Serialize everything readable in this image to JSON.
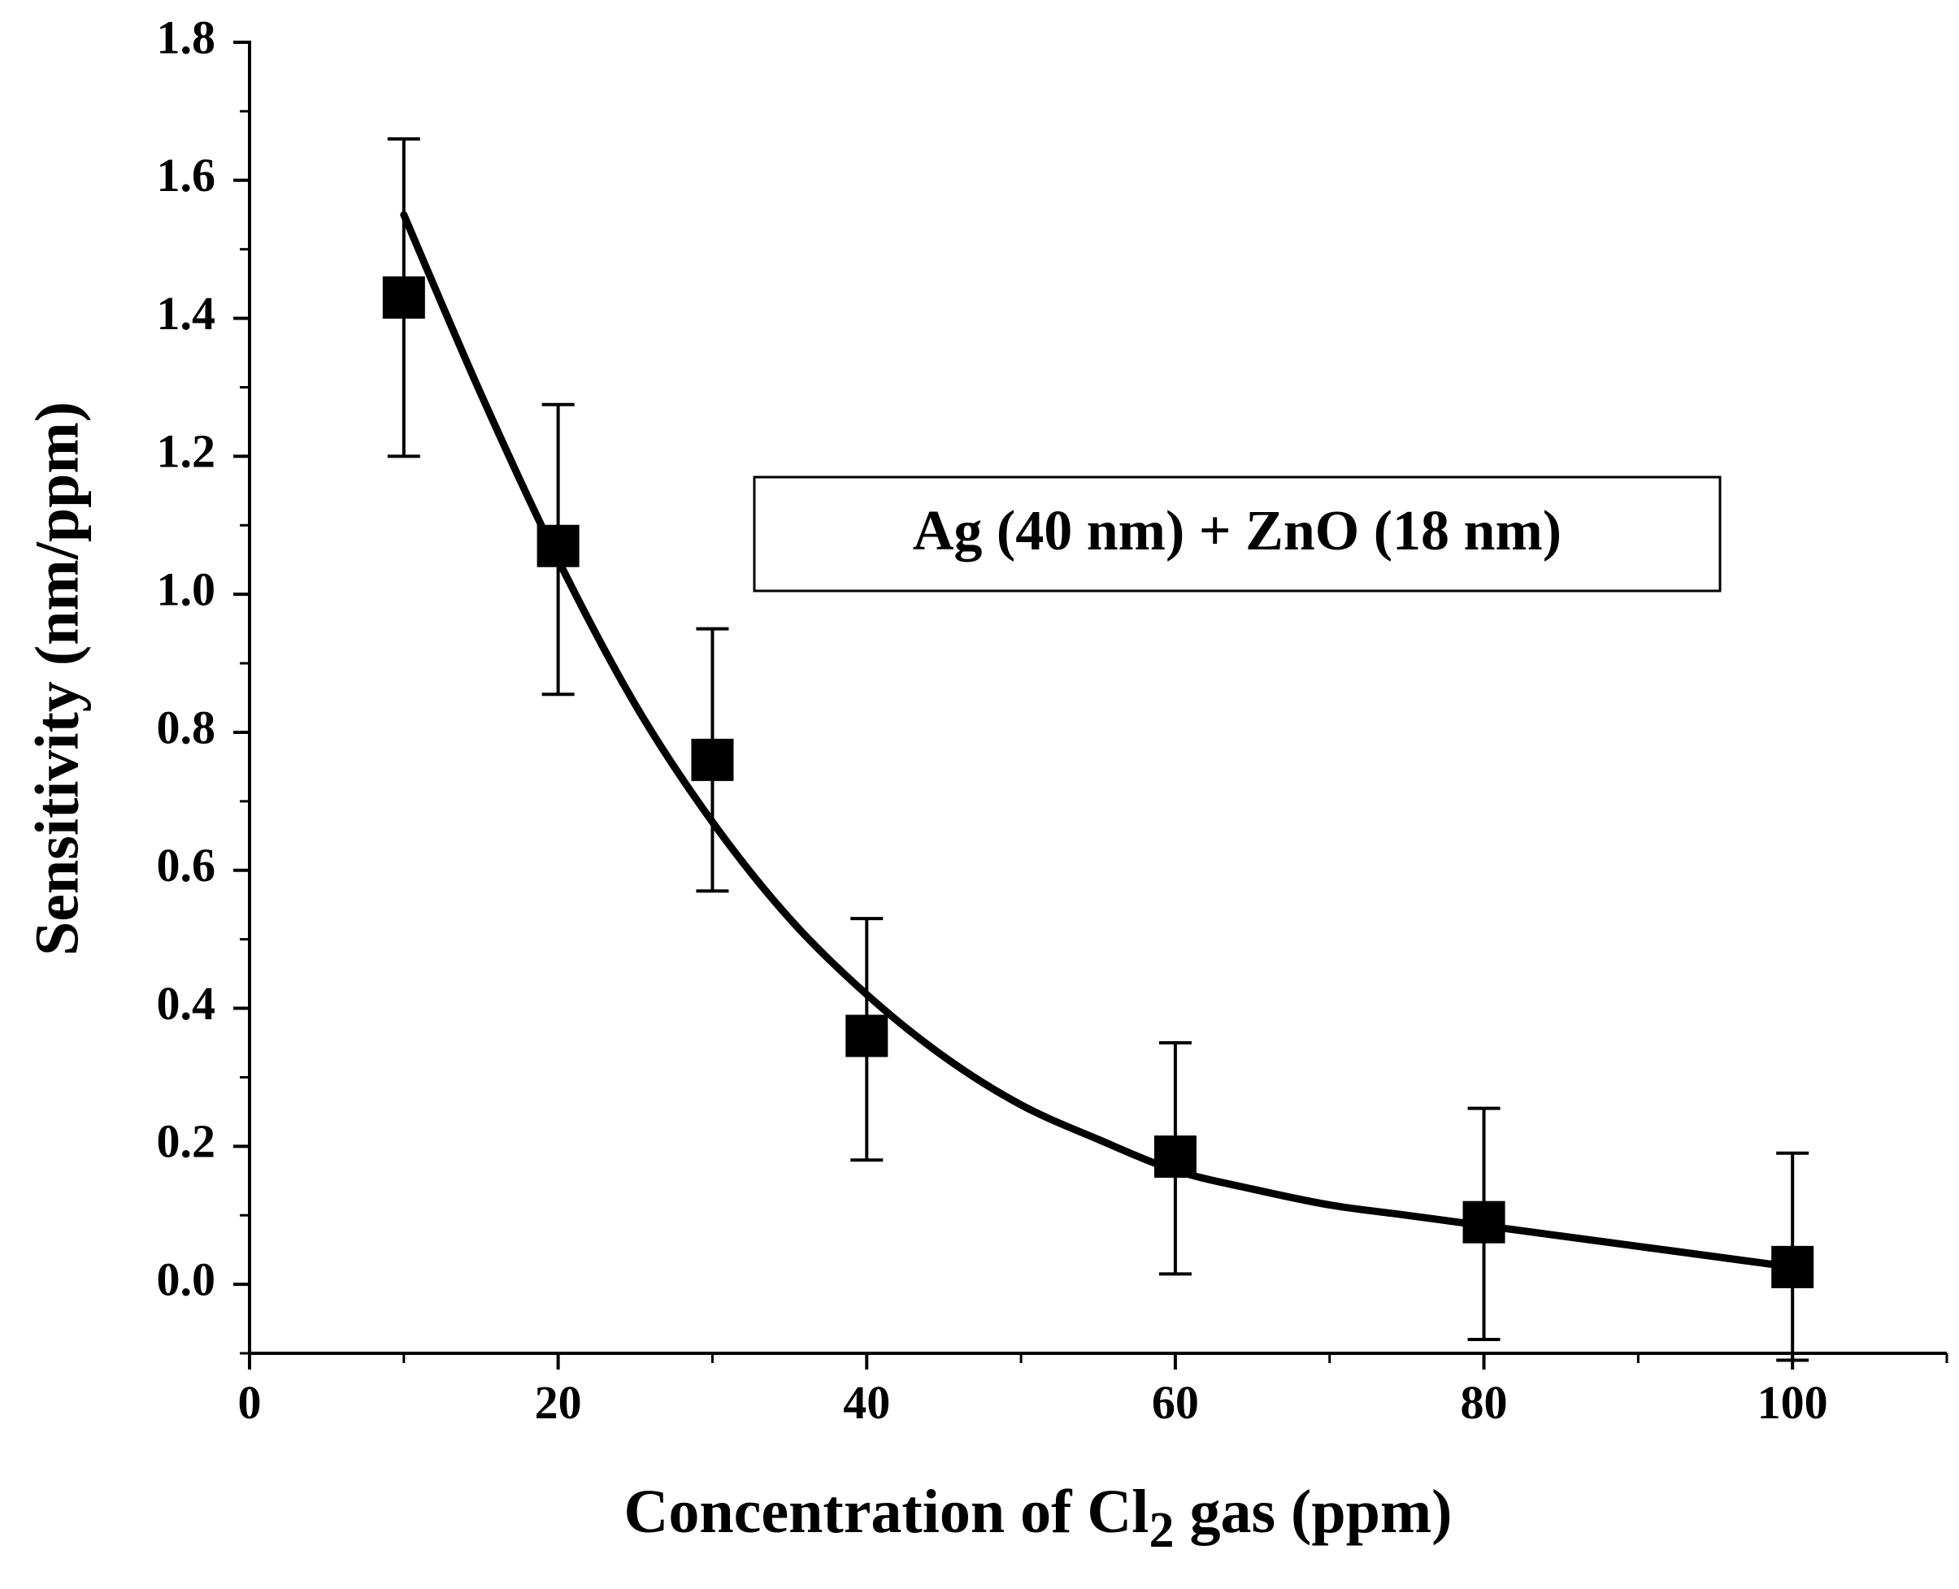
{
  "chart_data": {
    "type": "scatter",
    "xlabel": {
      "main": "Concentration of Cl",
      "sub": "2",
      "tail": " gas (ppm)"
    },
    "ylabel": "Sensitivity (nm/ppm)",
    "xlim": [
      0,
      110
    ],
    "ylim": [
      -0.1,
      1.8
    ],
    "x_ticks": [
      0,
      20,
      40,
      60,
      80,
      100
    ],
    "x_tick_labels": [
      "0",
      "20",
      "40",
      "60",
      "80",
      "100"
    ],
    "x_minor_step": 10,
    "y_ticks": [
      0.0,
      0.2,
      0.4,
      0.6,
      0.8,
      1.0,
      1.2,
      1.4,
      1.6,
      1.8
    ],
    "y_tick_labels": [
      "0.0",
      "0.2",
      "0.4",
      "0.6",
      "0.8",
      "1.0",
      "1.2",
      "1.4",
      "1.6",
      "1.8"
    ],
    "y_minor_step": 0.1,
    "legend": {
      "text": "Ag (40 nm) + ZnO (18 nm)",
      "position": "upper-right-center"
    },
    "series": [
      {
        "name": "Ag (40 nm) + ZnO (18 nm)",
        "marker": "square",
        "x": [
          10,
          20,
          30,
          40,
          60,
          80,
          100
        ],
        "y": [
          1.43,
          1.07,
          0.76,
          0.36,
          0.185,
          0.09,
          0.025
        ],
        "err_low": [
          1.2,
          0.855,
          0.57,
          0.18,
          0.015,
          -0.08,
          -0.11
        ],
        "err_high": [
          1.66,
          1.275,
          0.95,
          0.53,
          0.35,
          0.255,
          0.19
        ]
      }
    ],
    "fit": {
      "name": "fit",
      "x": [
        10,
        15,
        20,
        25,
        30,
        35,
        40,
        45,
        50,
        55,
        60,
        65,
        70,
        75,
        80,
        85,
        90,
        95,
        100
      ],
      "y": [
        1.55,
        1.29,
        1.05,
        0.84,
        0.67,
        0.53,
        0.42,
        0.33,
        0.26,
        0.21,
        0.165,
        0.138,
        0.115,
        0.1,
        0.085,
        0.07,
        0.055,
        0.04,
        0.025
      ]
    },
    "colors": {
      "ink": "#000000",
      "background": "#ffffff"
    }
  }
}
